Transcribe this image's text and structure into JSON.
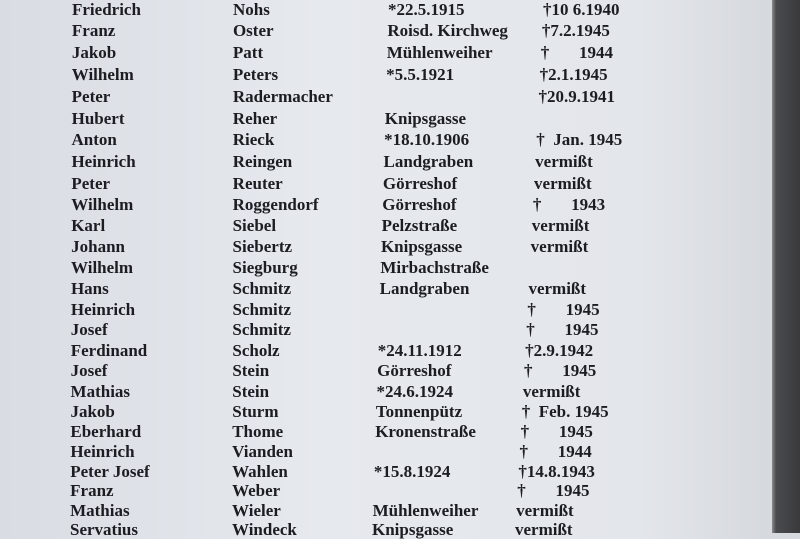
{
  "rows": [
    {
      "first": "Friedrich",
      "last": "Nohs",
      "info": "*22.5.1915",
      "fate": "†10 6.1940"
    },
    {
      "first": "Franz",
      "last": "Oster",
      "info": "Roisd. Kirchweg",
      "fate": "†7.2.1945"
    },
    {
      "first": "Jakob",
      "last": "Patt",
      "info": "Mühlenweiher",
      "fate": "†       1944"
    },
    {
      "first": "Wilhelm",
      "last": "Peters",
      "info": "*5.5.1921",
      "fate": "†2.1.1945"
    },
    {
      "first": "Peter",
      "last": "Radermacher",
      "info": "",
      "fate": "†20.9.1941"
    },
    {
      "first": "Hubert",
      "last": "Reher",
      "info": "Knipsgasse",
      "fate": ""
    },
    {
      "first": "Anton",
      "last": "Rieck",
      "info": "*18.10.1906",
      "fate": "†  Jan. 1945"
    },
    {
      "first": "Heinrich",
      "last": "Reingen",
      "info": "Landgraben",
      "fate": "vermißt"
    },
    {
      "first": "Peter",
      "last": "Reuter",
      "info": "Görreshof",
      "fate": "vermißt"
    },
    {
      "first": "Wilhelm",
      "last": "Roggendorf",
      "info": "Görreshof",
      "fate": "†       1943"
    },
    {
      "first": "Karl",
      "last": "Siebel",
      "info": "Pelzstraße",
      "fate": "vermißt"
    },
    {
      "first": "Johann",
      "last": "Siebertz",
      "info": "Knipsgasse",
      "fate": "vermißt"
    },
    {
      "first": "Wilhelm",
      "last": "Siegburg",
      "info": "Mirbachstraße",
      "fate": ""
    },
    {
      "first": "Hans",
      "last": "Schmitz",
      "info": "Landgraben",
      "fate": "vermißt"
    },
    {
      "first": "Heinrich",
      "last": "Schmitz",
      "info": "",
      "fate": "†       1945"
    },
    {
      "first": "Josef",
      "last": "Schmitz",
      "info": "",
      "fate": "†       1945"
    },
    {
      "first": "Ferdinand",
      "last": "Scholz",
      "info": "*24.11.1912",
      "fate": "†2.9.1942"
    },
    {
      "first": "Josef",
      "last": "Stein",
      "info": "Görreshof",
      "fate": "†       1945"
    },
    {
      "first": "Mathias",
      "last": "Stein",
      "info": "*24.6.1924",
      "fate": "vermißt"
    },
    {
      "first": "Jakob",
      "last": "Sturm",
      "info": "Tonnenpütz",
      "fate": "†  Feb. 1945"
    },
    {
      "first": "Eberhard",
      "last": "Thome",
      "info": "Kronenstraße",
      "fate": "†       1945"
    },
    {
      "first": "Heinrich",
      "last": "Vianden",
      "info": "",
      "fate": "†       1944"
    },
    {
      "first": "Peter Josef",
      "last": "Wahlen",
      "info": "*15.8.1924",
      "fate": "†14.8.1943"
    },
    {
      "first": "Franz",
      "last": "Weber",
      "info": "",
      "fate": "†       1945"
    },
    {
      "first": "Mathias",
      "last": "Wieler",
      "info": "Mühlenweiher",
      "fate": "vermißt"
    },
    {
      "first": "Servatius",
      "last": "Windeck",
      "info": "Knipsgasse",
      "fate": "vermißt"
    }
  ]
}
